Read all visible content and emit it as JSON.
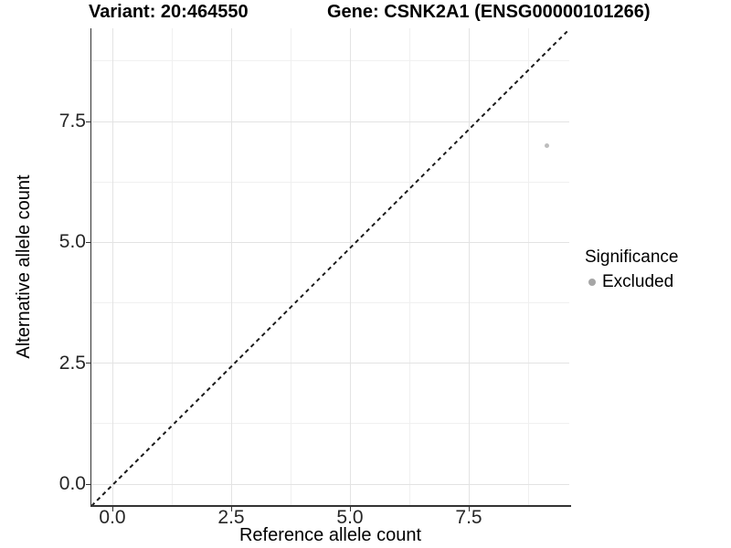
{
  "chart_data": {
    "type": "scatter",
    "title_variant": "Variant: 20:464550",
    "title_gene": "Gene: CSNK2A1 (ENSG00000101266)",
    "xlabel": "Reference allele count",
    "ylabel": "Alternative allele count",
    "x_ticks": [
      0,
      2.5,
      5,
      7.5
    ],
    "y_ticks": [
      0,
      2.5,
      5,
      7.5
    ],
    "x_tick_labels": [
      "0.0",
      "2.5",
      "5.0",
      "7.5"
    ],
    "y_tick_labels": [
      "0.0",
      "2.5",
      "5.0",
      "7.5"
    ],
    "xlim": [
      -0.44,
      9.62
    ],
    "ylim": [
      -0.43,
      9.43
    ],
    "grid": "major and minor, light gray on white",
    "series": [
      {
        "name": "Excluded",
        "color": "#bdbdbd",
        "points": [
          {
            "x": 9.15,
            "y": 7.0
          }
        ]
      }
    ],
    "reference_line": {
      "kind": "identity y=x",
      "style": "dashed",
      "color": "#1a1a1a"
    },
    "legend": {
      "title": "Significance",
      "position": "right",
      "items": [
        {
          "label": "Excluded",
          "color": "#a6a6a6"
        }
      ]
    }
  },
  "style": {
    "background": "#ffffff",
    "grid_major_color": "#e3e3e3",
    "grid_minor_color": "#f0f0f0",
    "axis_line_color": "#333333",
    "tick_label_color": "#262626"
  }
}
